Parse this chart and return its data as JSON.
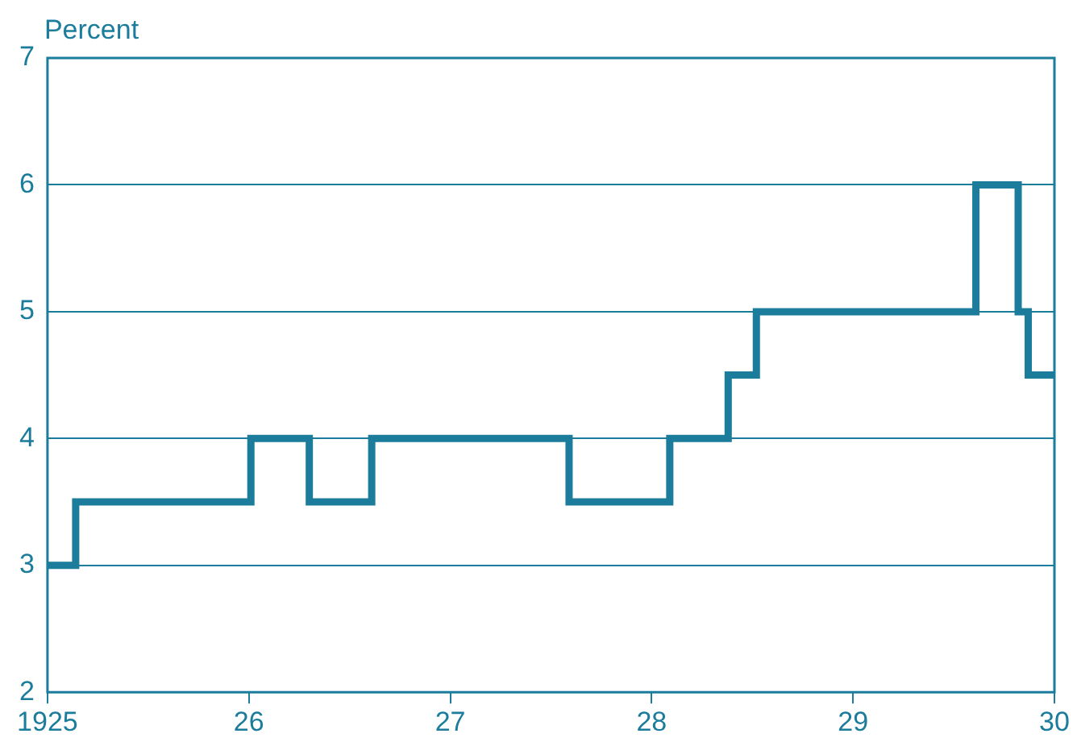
{
  "chart_data": {
    "type": "step",
    "ylabel": "Percent",
    "x": [
      1925,
      1925.14,
      1926.01,
      1926.3,
      1926.61,
      1927.59,
      1928.09,
      1928.38,
      1928.52,
      1929.61,
      1929.82,
      1929.87,
      1930
    ],
    "values": [
      3,
      3.5,
      4,
      3.5,
      4,
      3.5,
      4,
      4.5,
      5,
      6,
      5,
      4.5,
      4.5
    ],
    "color": "#1b7c9c",
    "xlim": [
      1925,
      1930
    ],
    "xticks": [
      {
        "value": 1925,
        "label": "1925"
      },
      {
        "value": 1926,
        "label": "26"
      },
      {
        "value": 1927,
        "label": "27"
      },
      {
        "value": 1928,
        "label": "28"
      },
      {
        "value": 1929,
        "label": "29"
      },
      {
        "value": 1930,
        "label": "30"
      }
    ],
    "ylim": [
      2,
      7
    ],
    "yticks": [
      2,
      3,
      4,
      5,
      6,
      7
    ],
    "grid": "y",
    "legend": false,
    "marker": "none",
    "line_style": "solid"
  }
}
